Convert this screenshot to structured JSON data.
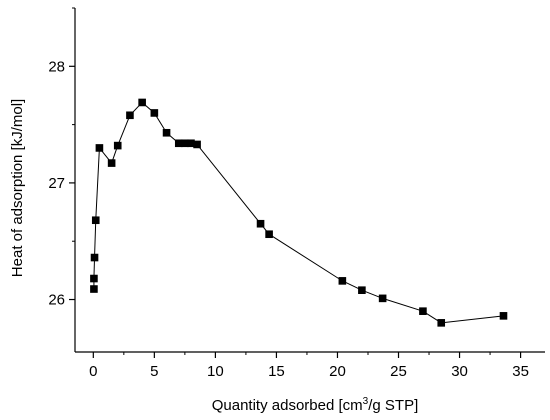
{
  "chart_data": {
    "type": "scatter",
    "xlabel": "Quantity adsorbed [cm",
    "xlabel_sup": "3",
    "xlabel_tail": "/g STP]",
    "ylabel": "Heat of adsorption [kJ/mol]",
    "xlim": [
      -1.5,
      37
    ],
    "ylim": [
      25.55,
      28.5
    ],
    "x_ticks": [
      0,
      5,
      10,
      15,
      20,
      25,
      30,
      35
    ],
    "x_tick_labels": [
      "0",
      "5",
      "10",
      "15",
      "20",
      "25",
      "30",
      "35"
    ],
    "y_ticks": [
      26,
      27,
      28
    ],
    "y_tick_labels": [
      "26",
      "27",
      "28"
    ],
    "grid": false,
    "legend": "none",
    "marker": "square",
    "line": true,
    "series": [
      {
        "color": "#000000",
        "points": [
          {
            "x": 0.05,
            "y": 26.09
          },
          {
            "x": 0.05,
            "y": 26.18
          },
          {
            "x": 0.1,
            "y": 26.36
          },
          {
            "x": 0.2,
            "y": 26.68
          },
          {
            "x": 0.5,
            "y": 27.3
          },
          {
            "x": 1.5,
            "y": 27.17
          },
          {
            "x": 2.0,
            "y": 27.32
          },
          {
            "x": 3.0,
            "y": 27.58
          },
          {
            "x": 4.0,
            "y": 27.69
          },
          {
            "x": 5.0,
            "y": 27.6
          },
          {
            "x": 6.0,
            "y": 27.43
          },
          {
            "x": 7.0,
            "y": 27.34
          },
          {
            "x": 7.5,
            "y": 27.34
          },
          {
            "x": 8.0,
            "y": 27.34
          },
          {
            "x": 8.5,
            "y": 27.33
          },
          {
            "x": 13.7,
            "y": 26.65
          },
          {
            "x": 14.4,
            "y": 26.56
          },
          {
            "x": 20.4,
            "y": 26.16
          },
          {
            "x": 22.0,
            "y": 26.08
          },
          {
            "x": 23.7,
            "y": 26.01
          },
          {
            "x": 27.0,
            "y": 25.9
          },
          {
            "x": 28.5,
            "y": 25.8
          },
          {
            "x": 33.6,
            "y": 25.86
          }
        ]
      }
    ]
  }
}
